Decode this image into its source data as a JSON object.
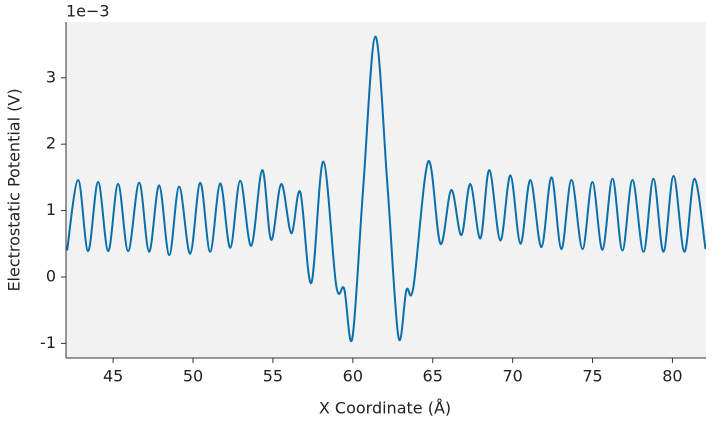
{
  "chart_data": {
    "type": "line",
    "xlabel": "X Coordinate (Å)",
    "ylabel": "Electrostatic Potential (V)",
    "offset_text": "1e−3",
    "x": [
      42.12,
      42.81,
      43.43,
      44.06,
      44.69,
      45.31,
      45.94,
      46.63,
      47.25,
      47.88,
      48.51,
      49.13,
      49.82,
      50.45,
      51.07,
      51.7,
      52.33,
      52.95,
      53.64,
      54.33,
      54.89,
      55.52,
      56.15,
      56.71,
      57.4,
      58.15,
      58.96,
      59.46,
      59.97,
      60.65,
      61.41,
      62.16,
      62.85,
      63.35,
      63.79,
      64.72,
      65.48,
      66.16,
      66.79,
      67.35,
      67.98,
      68.54,
      69.23,
      69.86,
      70.49,
      71.11,
      71.8,
      72.43,
      73.05,
      73.68,
      74.37,
      74.99,
      75.62,
      76.25,
      76.87,
      77.5,
      78.19,
      78.81,
      79.44,
      80.07,
      80.75,
      81.38,
      82.07
    ],
    "series": [
      {
        "color": "#0a6fab",
        "values": [
          0.4,
          1.46,
          0.39,
          1.43,
          0.39,
          1.4,
          0.39,
          1.42,
          0.38,
          1.38,
          0.33,
          1.36,
          0.35,
          1.42,
          0.38,
          1.41,
          0.44,
          1.45,
          0.47,
          1.61,
          0.56,
          1.4,
          0.66,
          1.28,
          -0.09,
          1.74,
          -0.13,
          -0.18,
          -0.92,
          1.35,
          3.62,
          1.4,
          -0.9,
          -0.2,
          -0.15,
          1.74,
          0.5,
          1.31,
          0.63,
          1.4,
          0.58,
          1.61,
          0.55,
          1.53,
          0.5,
          1.46,
          0.45,
          1.5,
          0.42,
          1.46,
          0.42,
          1.43,
          0.41,
          1.48,
          0.4,
          1.46,
          0.38,
          1.48,
          0.38,
          1.52,
          0.38,
          1.48,
          0.42
        ]
      }
    ],
    "xlim": [
      42.05,
      82.1
    ],
    "xticks": [
      45,
      50,
      55,
      60,
      65,
      70,
      75,
      80
    ],
    "ylim": [
      -1.22,
      3.84
    ],
    "yticks": [
      -1,
      0,
      1,
      2,
      3
    ],
    "background": "#f2f2f2"
  }
}
